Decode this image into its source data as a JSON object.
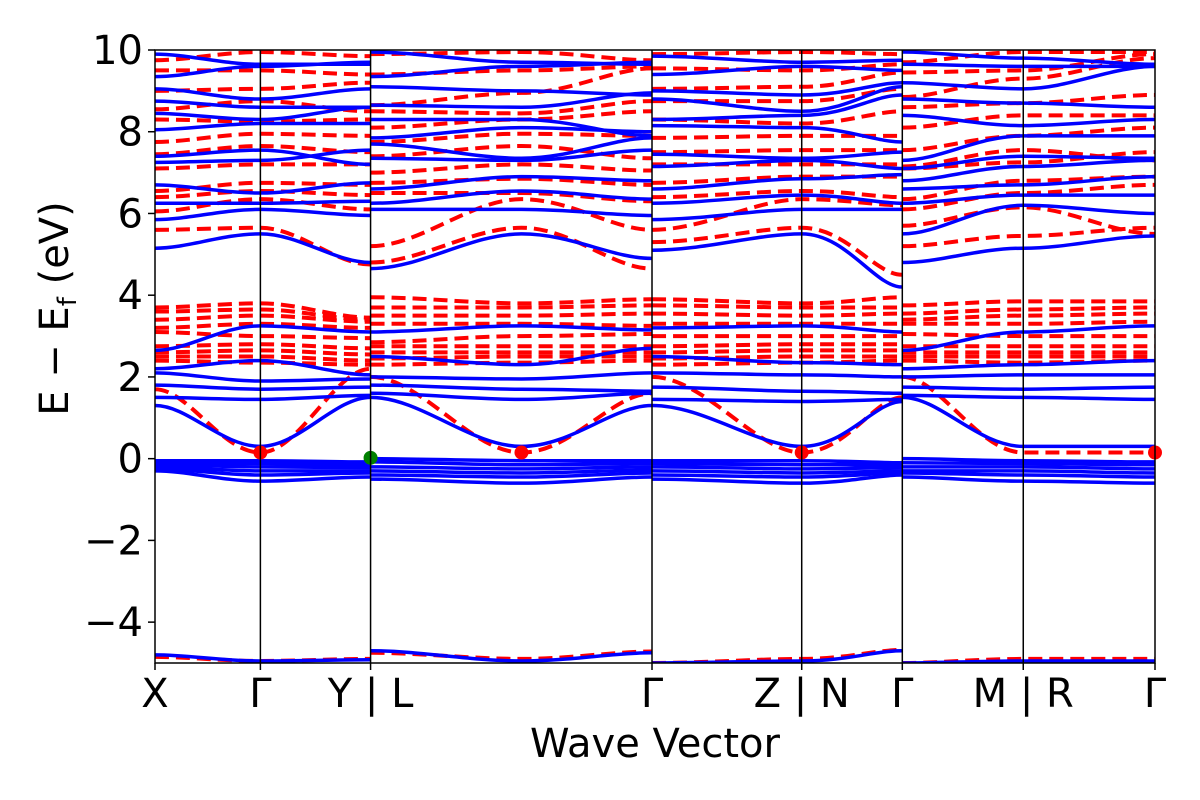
{
  "chart_data": {
    "type": "line",
    "title": "",
    "xlabel": "Wave Vector",
    "ylabel_main": "E − E",
    "ylabel_sub": "f",
    "ylabel_unit": " (eV)",
    "ylim": [
      -5,
      10
    ],
    "yticks": [
      -4,
      -2,
      0,
      2,
      4,
      6,
      8,
      10
    ],
    "ytick_labels": [
      "−4",
      "−2",
      "0",
      "2",
      "4",
      "6",
      "8",
      "10"
    ],
    "xlim": [
      0,
      8.35
    ],
    "xticks": [
      0,
      0.88,
      1.8,
      3.06,
      4.15,
      5.4,
      6.24,
      7.25,
      8.35
    ],
    "xtick_labels": [
      "X",
      "Γ",
      "Y | L",
      "",
      "Γ",
      "Z | N",
      "Γ",
      "M | R",
      "Γ"
    ],
    "band_segments_x": [
      [
        0,
        0.88,
        1.8
      ],
      [
        1.8,
        3.06,
        4.15
      ],
      [
        4.15,
        5.4,
        6.24
      ],
      [
        6.24,
        7.25,
        8.35
      ]
    ],
    "series": [
      {
        "style": "solid",
        "color": "#0000ff",
        "bands": [
          [
            [
              -4.8,
              -4.95,
              -4.92
            ],
            [
              -4.7,
              -4.95,
              -4.75
            ],
            [
              -5.0,
              -4.95,
              -4.7
            ],
            [
              -5.0,
              -4.95,
              -4.95
            ]
          ],
          [
            [
              -0.3,
              -0.55,
              -0.45
            ],
            [
              -0.5,
              -0.6,
              -0.45
            ],
            [
              -0.5,
              -0.6,
              -0.4
            ],
            [
              -0.45,
              -0.55,
              -0.6
            ]
          ],
          [
            [
              -0.25,
              -0.4,
              -0.35
            ],
            [
              -0.4,
              -0.45,
              -0.35
            ],
            [
              -0.4,
              -0.45,
              -0.35
            ],
            [
              -0.35,
              -0.4,
              -0.45
            ]
          ],
          [
            [
              -0.2,
              -0.3,
              -0.3
            ],
            [
              -0.3,
              -0.35,
              -0.28
            ],
            [
              -0.3,
              -0.35,
              -0.3
            ],
            [
              -0.3,
              -0.3,
              -0.35
            ]
          ],
          [
            [
              -0.15,
              -0.2,
              -0.22
            ],
            [
              -0.2,
              -0.25,
              -0.2
            ],
            [
              -0.2,
              -0.25,
              -0.22
            ],
            [
              -0.2,
              -0.2,
              -0.25
            ]
          ],
          [
            [
              -0.1,
              -0.12,
              -0.15
            ],
            [
              -0.08,
              -0.15,
              -0.12
            ],
            [
              -0.12,
              -0.15,
              -0.15
            ],
            [
              -0.1,
              -0.12,
              -0.15
            ]
          ],
          [
            [
              -0.05,
              -0.05,
              -0.08
            ],
            [
              0.0,
              -0.05,
              -0.05
            ],
            [
              -0.05,
              -0.05,
              -0.1
            ],
            [
              0.0,
              -0.05,
              -0.08
            ]
          ],
          [
            [
              1.3,
              0.3,
              1.5
            ],
            [
              1.5,
              0.3,
              1.3
            ],
            [
              1.3,
              0.3,
              1.4
            ],
            [
              1.5,
              0.3,
              0.3
            ]
          ],
          [
            [
              1.5,
              1.45,
              1.55
            ],
            [
              1.6,
              1.45,
              1.6
            ],
            [
              1.45,
              1.4,
              1.45
            ],
            [
              1.55,
              1.5,
              1.45
            ]
          ],
          [
            [
              1.8,
              1.7,
              1.75
            ],
            [
              1.8,
              1.7,
              1.65
            ],
            [
              1.75,
              1.65,
              1.6
            ],
            [
              1.75,
              1.7,
              1.75
            ]
          ],
          [
            [
              2.1,
              1.9,
              1.95
            ],
            [
              2.0,
              1.95,
              2.1
            ],
            [
              2.1,
              2.05,
              2.0
            ],
            [
              2.0,
              2.05,
              2.05
            ]
          ],
          [
            [
              2.2,
              2.4,
              2.05
            ],
            [
              2.5,
              2.3,
              2.7
            ],
            [
              2.5,
              2.35,
              2.3
            ],
            [
              2.2,
              2.3,
              2.4
            ]
          ],
          [
            [
              2.65,
              3.25,
              3.1
            ],
            [
              3.1,
              3.25,
              3.15
            ],
            [
              3.2,
              3.25,
              3.1
            ],
            [
              2.65,
              3.1,
              3.25
            ]
          ],
          [
            [
              5.15,
              5.5,
              4.8
            ],
            [
              4.65,
              5.5,
              4.9
            ],
            [
              5.1,
              5.5,
              4.2
            ],
            [
              4.8,
              5.15,
              5.45
            ]
          ],
          [
            [
              5.85,
              6.1,
              5.95
            ],
            [
              6.1,
              6.1,
              5.95
            ],
            [
              5.85,
              6.1,
              6.1
            ],
            [
              5.5,
              6.2,
              6.0
            ]
          ],
          [
            [
              6.25,
              6.25,
              6.3
            ],
            [
              6.25,
              6.55,
              6.35
            ],
            [
              6.25,
              6.45,
              6.25
            ],
            [
              6.25,
              6.45,
              6.45
            ]
          ],
          [
            [
              6.7,
              6.5,
              6.75
            ],
            [
              6.6,
              6.9,
              6.8
            ],
            [
              6.6,
              6.85,
              6.95
            ],
            [
              6.6,
              6.7,
              6.9
            ]
          ],
          [
            [
              7.25,
              7.3,
              7.55
            ],
            [
              7.35,
              7.3,
              7.55
            ],
            [
              7.15,
              7.3,
              7.1
            ],
            [
              6.8,
              7.15,
              7.3
            ]
          ],
          [
            [
              7.4,
              7.55,
              7.2
            ],
            [
              7.7,
              7.35,
              7.85
            ],
            [
              7.45,
              7.35,
              7.5
            ],
            [
              7.1,
              7.4,
              7.35
            ]
          ],
          [
            [
              8.05,
              8.2,
              8.2
            ],
            [
              7.85,
              8.1,
              8.0
            ],
            [
              8.15,
              8.1,
              7.75
            ],
            [
              7.3,
              7.9,
              7.9
            ]
          ],
          [
            [
              8.45,
              8.3,
              8.6
            ],
            [
              8.3,
              8.3,
              7.9
            ],
            [
              8.3,
              8.4,
              8.9
            ],
            [
              8.4,
              8.15,
              8.3
            ]
          ],
          [
            [
              8.75,
              8.6,
              8.6
            ],
            [
              8.65,
              8.6,
              8.95
            ],
            [
              8.8,
              8.5,
              9.1
            ],
            [
              8.8,
              8.7,
              8.6
            ]
          ],
          [
            [
              9.05,
              8.8,
              9.05
            ],
            [
              9.1,
              9.0,
              8.9
            ],
            [
              9.0,
              8.9,
              9.2
            ],
            [
              9.2,
              9.05,
              9.6
            ]
          ],
          [
            [
              9.35,
              9.6,
              9.7
            ],
            [
              9.35,
              9.6,
              9.7
            ],
            [
              9.4,
              9.6,
              9.5
            ],
            [
              9.65,
              9.6,
              9.6
            ]
          ],
          [
            [
              9.9,
              9.65,
              9.65
            ],
            [
              9.95,
              9.7,
              9.65
            ],
            [
              9.85,
              9.7,
              9.75
            ],
            [
              9.95,
              9.8,
              9.65
            ]
          ]
        ]
      },
      {
        "style": "dashed",
        "color": "#ff0000",
        "bands": [
          [
            [
              -4.85,
              -4.95,
              -4.9
            ],
            [
              -4.75,
              -4.9,
              -4.72
            ],
            [
              -5.0,
              -4.9,
              -4.68
            ],
            [
              -5.0,
              -4.9,
              -4.9
            ]
          ],
          [
            [
              1.7,
              0.15,
              2.2
            ],
            [
              2.0,
              0.15,
              1.6
            ],
            [
              2.0,
              0.15,
              1.5
            ],
            [
              2.0,
              0.15,
              0.15
            ]
          ],
          [
            [
              2.4,
              2.35,
              2.3
            ],
            [
              2.3,
              2.35,
              2.4
            ],
            [
              2.3,
              2.35,
              2.4
            ],
            [
              2.4,
              2.35,
              2.4
            ]
          ],
          [
            [
              2.5,
              2.5,
              2.4
            ],
            [
              2.45,
              2.5,
              2.5
            ],
            [
              2.45,
              2.5,
              2.5
            ],
            [
              2.5,
              2.5,
              2.5
            ]
          ],
          [
            [
              2.6,
              2.65,
              2.55
            ],
            [
              2.6,
              2.6,
              2.6
            ],
            [
              2.6,
              2.65,
              2.65
            ],
            [
              2.6,
              2.6,
              2.6
            ]
          ],
          [
            [
              2.75,
              2.8,
              2.7
            ],
            [
              2.75,
              2.75,
              2.75
            ],
            [
              2.75,
              2.8,
              2.8
            ],
            [
              2.75,
              2.75,
              2.75
            ]
          ],
          [
            [
              3.1,
              3.0,
              2.95
            ],
            [
              2.85,
              3.0,
              3.05
            ],
            [
              3.0,
              3.0,
              3.0
            ],
            [
              3.05,
              3.0,
              3.0
            ]
          ],
          [
            [
              3.2,
              3.3,
              3.2
            ],
            [
              3.3,
              3.3,
              3.25
            ],
            [
              3.3,
              3.3,
              3.3
            ],
            [
              3.3,
              3.3,
              3.35
            ]
          ],
          [
            [
              3.4,
              3.5,
              3.35
            ],
            [
              3.5,
              3.5,
              3.55
            ],
            [
              3.55,
              3.5,
              3.55
            ],
            [
              3.4,
              3.5,
              3.55
            ]
          ],
          [
            [
              3.6,
              3.65,
              3.4
            ],
            [
              3.7,
              3.7,
              3.75
            ],
            [
              3.75,
              3.7,
              3.7
            ],
            [
              3.55,
              3.65,
              3.7
            ]
          ],
          [
            [
              3.7,
              3.8,
              3.45
            ],
            [
              3.95,
              3.8,
              3.9
            ],
            [
              3.9,
              3.8,
              3.95
            ],
            [
              3.75,
              3.85,
              3.85
            ]
          ],
          [
            [
              5.6,
              5.65,
              4.75
            ],
            [
              4.8,
              5.65,
              4.65
            ],
            [
              5.3,
              5.65,
              4.5
            ],
            [
              5.2,
              5.45,
              5.65
            ]
          ],
          [
            [
              6.05,
              6.35,
              6.1
            ],
            [
              5.2,
              6.35,
              5.6
            ],
            [
              5.6,
              6.35,
              6.2
            ],
            [
              5.7,
              6.15,
              5.5
            ]
          ],
          [
            [
              6.4,
              6.55,
              6.45
            ],
            [
              6.5,
              6.5,
              6.3
            ],
            [
              6.4,
              6.55,
              6.4
            ],
            [
              6.1,
              6.5,
              6.7
            ]
          ],
          [
            [
              6.55,
              6.75,
              6.7
            ],
            [
              6.75,
              6.85,
              6.7
            ],
            [
              6.75,
              6.9,
              6.9
            ],
            [
              6.35,
              6.8,
              6.9
            ]
          ],
          [
            [
              7.1,
              7.2,
              7.2
            ],
            [
              7.0,
              7.2,
              7.05
            ],
            [
              7.2,
              7.2,
              7.2
            ],
            [
              7.1,
              7.25,
              7.5
            ]
          ],
          [
            [
              7.45,
              7.65,
              7.5
            ],
            [
              7.4,
              7.65,
              7.35
            ],
            [
              7.5,
              7.55,
              7.55
            ],
            [
              7.15,
              7.55,
              7.3
            ]
          ],
          [
            [
              7.75,
              7.95,
              7.9
            ],
            [
              7.75,
              7.95,
              7.9
            ],
            [
              7.85,
              7.9,
              7.9
            ],
            [
              7.55,
              7.9,
              8.1
            ]
          ],
          [
            [
              8.3,
              8.25,
              8.3
            ],
            [
              8.1,
              8.3,
              8.5
            ],
            [
              8.3,
              8.2,
              8.5
            ],
            [
              8.1,
              8.4,
              8.4
            ]
          ],
          [
            [
              8.55,
              8.75,
              8.5
            ],
            [
              8.5,
              8.45,
              8.75
            ],
            [
              8.75,
              8.75,
              9.05
            ],
            [
              8.6,
              8.7,
              8.9
            ]
          ],
          [
            [
              9.0,
              9.05,
              9.2
            ],
            [
              8.65,
              8.95,
              9.55
            ],
            [
              9.05,
              9.1,
              9.45
            ],
            [
              8.85,
              9.3,
              9.8
            ]
          ],
          [
            [
              9.5,
              9.5,
              9.4
            ],
            [
              9.4,
              9.5,
              9.6
            ],
            [
              9.55,
              9.5,
              9.65
            ],
            [
              9.45,
              9.5,
              9.9
            ]
          ],
          [
            [
              9.75,
              9.95,
              9.85
            ],
            [
              9.9,
              9.95,
              9.75
            ],
            [
              9.9,
              9.95,
              9.9
            ],
            [
              9.7,
              9.95,
              9.95
            ]
          ]
        ]
      }
    ],
    "markers": [
      {
        "x": 0.88,
        "y": 0.15,
        "color": "#ff0000"
      },
      {
        "x": 3.06,
        "y": 0.15,
        "color": "#ff0000"
      },
      {
        "x": 5.4,
        "y": 0.15,
        "color": "#ff0000"
      },
      {
        "x": 8.35,
        "y": 0.15,
        "color": "#ff0000"
      },
      {
        "x": 1.8,
        "y": 0.02,
        "color": "#008000"
      }
    ]
  }
}
